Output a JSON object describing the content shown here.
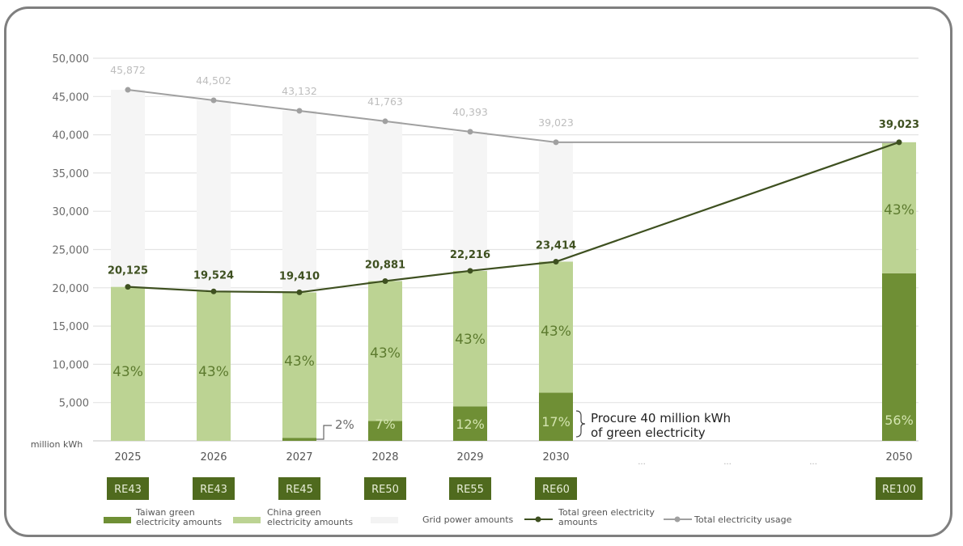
{
  "chart_data": {
    "type": "bar",
    "title": "",
    "xlabel": "",
    "ylabel": "million kWh",
    "ylim": [
      0,
      50000
    ],
    "yticks": [
      "50,000",
      "45,000",
      "40,000",
      "35,000",
      "30,000",
      "25,000",
      "20,000",
      "15,000",
      "10,000",
      "5,000"
    ],
    "grid": true,
    "categories": [
      "2025",
      "2026",
      "2027",
      "2028",
      "2029",
      "2030",
      "2050"
    ],
    "gap_markers": [
      "···",
      "···",
      "···"
    ],
    "series": [
      {
        "name": "Taiwan green electricity amounts",
        "type": "bar-stacked",
        "color": "#6f8f35",
        "values": [
          0,
          0,
          400,
          2600,
          4500,
          6300,
          21900
        ],
        "labels": [
          "",
          "",
          "2%",
          "7%",
          "12%",
          "17%",
          "56%"
        ]
      },
      {
        "name": "China green electricity amounts",
        "type": "bar-stacked",
        "color": "#bcd393",
        "values": [
          20125,
          19524,
          19010,
          18281,
          17716,
          17114,
          17123
        ],
        "labels": [
          "43%",
          "43%",
          "43%",
          "43%",
          "43%",
          "43%",
          "43%"
        ]
      },
      {
        "name": "Grid power amounts",
        "type": "bar-stacked",
        "color": "#f5f5f5",
        "values": [
          25747,
          24978,
          23722,
          20882,
          18177,
          15609,
          0
        ]
      },
      {
        "name": "Total green electricity amounts",
        "type": "line",
        "color": "#3e5020",
        "values": [
          20125,
          19524,
          19410,
          20881,
          22216,
          23414,
          39023
        ],
        "labels": [
          "20,125",
          "19,524",
          "19,410",
          "20,881",
          "22,216",
          "23,414",
          "39,023"
        ]
      },
      {
        "name": "Total electricity usage",
        "type": "line",
        "color": "#a0a0a0",
        "values": [
          45872,
          44502,
          43132,
          41763,
          40393,
          39023,
          39023
        ],
        "labels": [
          "45,872",
          "44,502",
          "43,132",
          "41,763",
          "40,393",
          "39,023",
          ""
        ]
      }
    ],
    "re_targets": [
      "RE43",
      "RE43",
      "RE45",
      "RE50",
      "RE55",
      "RE60",
      "RE100"
    ],
    "annotation": {
      "line1": "Procure 40 million kWh",
      "line2": "of green electricity"
    },
    "legend": {
      "placement": "bottom",
      "items": [
        {
          "line1": "Taiwan green",
          "line2": "electricity amounts",
          "kind": "bar",
          "color": "#6f8f35"
        },
        {
          "line1": "China green",
          "line2": "electricity amounts",
          "kind": "bar",
          "color": "#bcd393"
        },
        {
          "line1": "Grid power amounts",
          "line2": "",
          "kind": "bar",
          "color": "#f3f3f3"
        },
        {
          "line1": "Total green electricity",
          "line2": "amounts",
          "kind": "line",
          "color": "#3e5020"
        },
        {
          "line1": "Total electricity usage",
          "line2": "",
          "kind": "line",
          "color": "#a0a0a0"
        }
      ]
    }
  }
}
